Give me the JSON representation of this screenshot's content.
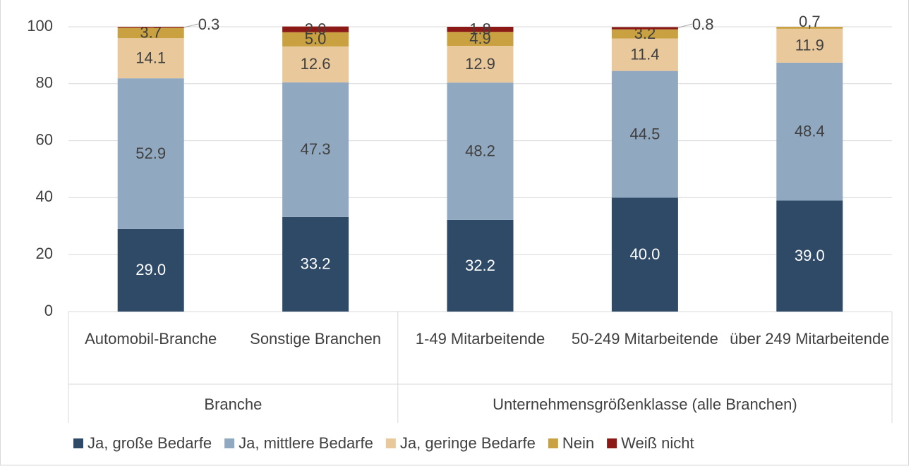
{
  "chart_data": {
    "type": "stacked_bar",
    "categories": [
      "Automobil-Branche",
      "Sonstige Branchen",
      "1-49 Mitarbeitende",
      "50-249 Mitarbeitende",
      "über 249 Mitarbeitende"
    ],
    "groups": [
      "Branche",
      "Unternehmensgrößenklasse (alle Branchen)"
    ],
    "series": [
      {
        "name": "Ja, große Bedarfe",
        "color": "#2e4a66",
        "values": [
          29.0,
          33.2,
          32.2,
          40.0,
          39.0
        ],
        "value_labels": [
          "29.0",
          "33.2",
          "32.2",
          "40.0",
          "39.0"
        ]
      },
      {
        "name": "Ja, mittlere Bedarfe",
        "color": "#91a9c0",
        "values": [
          52.9,
          47.3,
          48.2,
          44.5,
          48.4
        ],
        "value_labels": [
          "52.9",
          "47.3",
          "48.2",
          "44.5",
          "48.4"
        ]
      },
      {
        "name": "Ja, geringe Bedarfe",
        "color": "#e9c99b",
        "values": [
          14.1,
          12.6,
          12.9,
          11.4,
          11.9
        ],
        "value_labels": [
          "14.1",
          "12.6",
          "12.9",
          "11.4",
          "11.9"
        ]
      },
      {
        "name": "Nein",
        "color": "#c9a141",
        "values": [
          3.7,
          5.0,
          4.9,
          3.2,
          0.7
        ],
        "value_labels": [
          "3.7",
          "5.0",
          "4.9",
          "3.2",
          "0,7"
        ]
      },
      {
        "name": "Weiß nicht",
        "color": "#8b1a16",
        "values": [
          0.3,
          2.0,
          1.8,
          0.8,
          null
        ],
        "value_labels": [
          "0.3",
          "2.0",
          "1.8",
          "0.8",
          null
        ]
      }
    ],
    "ylim": [
      0,
      100
    ],
    "yticks": [
      0,
      20,
      40,
      60,
      80,
      100
    ],
    "grid": true
  }
}
